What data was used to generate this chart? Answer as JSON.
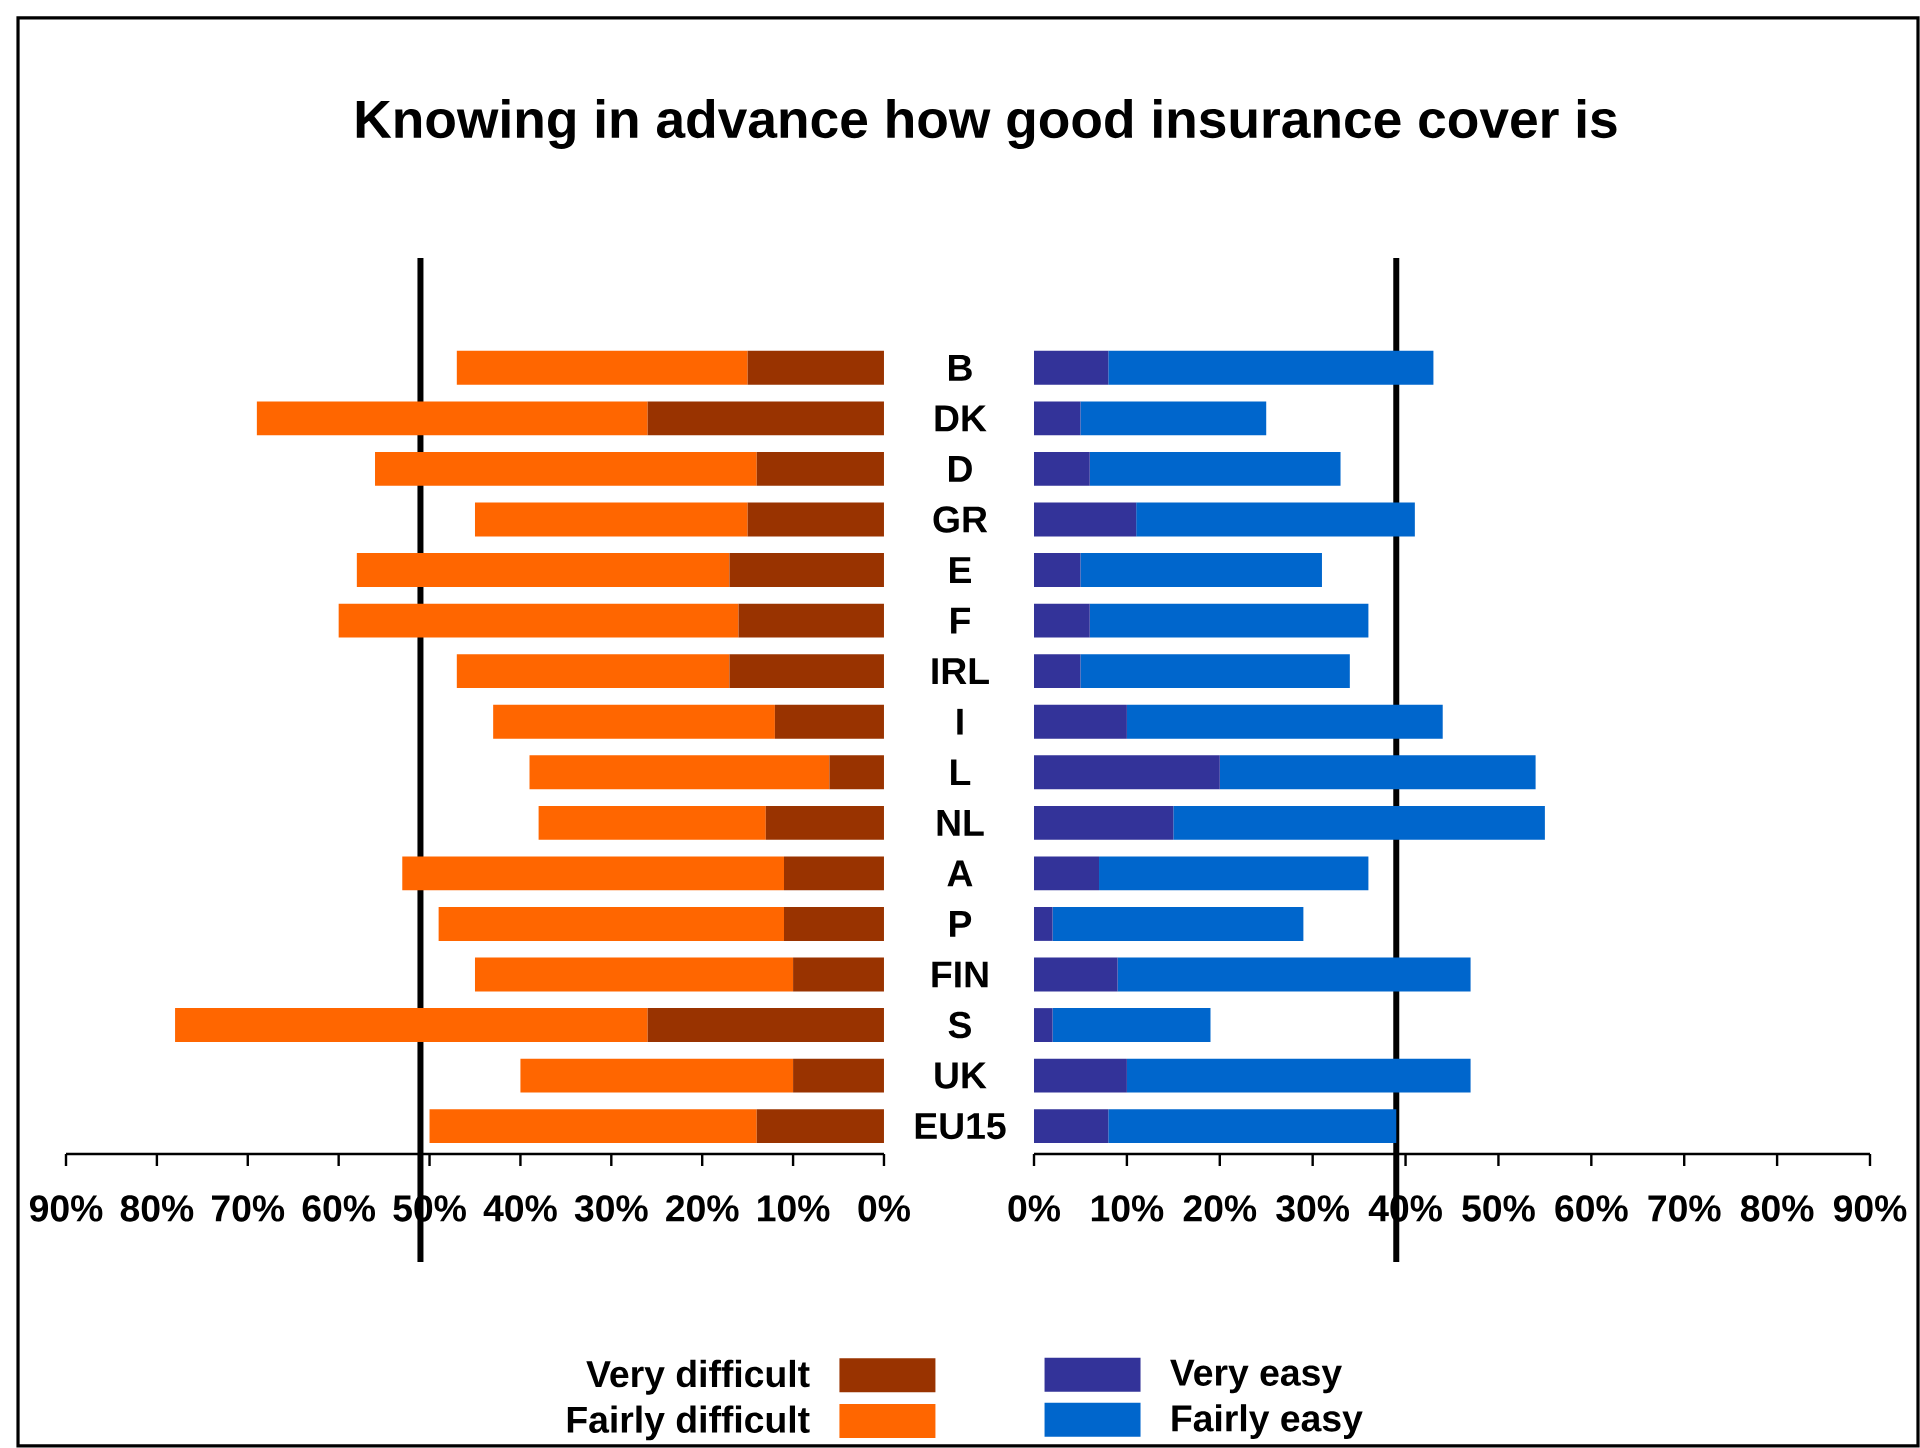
{
  "chart_data": [
    {
      "type": "bar",
      "orientation": "horizontal",
      "stacked": true,
      "title": "Knowing in advance how good insurance cover is",
      "categories": [
        "B",
        "DK",
        "D",
        "GR",
        "E",
        "F",
        "IRL",
        "I",
        "L",
        "NL",
        "A",
        "P",
        "FIN",
        "S",
        "UK",
        "EU15"
      ],
      "series": [
        {
          "name": "Very difficult",
          "color": "#993300",
          "values": [
            15,
            26,
            14,
            15,
            17,
            16,
            17,
            12,
            6,
            13,
            11,
            11,
            10,
            26,
            10,
            14
          ]
        },
        {
          "name": "Fairly difficult",
          "color": "#ff6600",
          "values": [
            32,
            43,
            42,
            30,
            41,
            44,
            30,
            31,
            33,
            25,
            42,
            38,
            35,
            52,
            30,
            36
          ]
        }
      ],
      "xlim": [
        90,
        0
      ],
      "xticks": [
        {
          "value": 0,
          "label": "0%"
        },
        {
          "value": 10,
          "label": "10%"
        },
        {
          "value": 20,
          "label": "20%"
        },
        {
          "value": 30,
          "label": "30%"
        },
        {
          "value": 40,
          "label": "40%"
        },
        {
          "value": 50,
          "label": "50%"
        },
        {
          "value": 60,
          "label": "60%"
        },
        {
          "value": 70,
          "label": "70%"
        },
        {
          "value": 80,
          "label": "80%"
        },
        {
          "value": 90,
          "label": "90%"
        }
      ],
      "ref_lines": [
        {
          "axis": "x",
          "value": 51
        }
      ],
      "legend": "bottom"
    },
    {
      "type": "bar",
      "orientation": "horizontal",
      "stacked": true,
      "categories": [
        null,
        null,
        null,
        null,
        null,
        null,
        null,
        null,
        null,
        null,
        null,
        null,
        null,
        null,
        null,
        null
      ],
      "series": [
        {
          "name": "Very easy",
          "color": "#333399",
          "values": [
            8,
            5,
            6,
            11,
            5,
            6,
            5,
            10,
            20,
            15,
            7,
            2,
            9,
            2,
            10,
            8
          ]
        },
        {
          "name": "Fairly easy",
          "color": "#0066cc",
          "values": [
            35,
            20,
            27,
            30,
            26,
            30,
            29,
            34,
            34,
            40,
            29,
            27,
            38,
            17,
            37,
            31
          ]
        }
      ],
      "xlim": [
        0,
        90
      ],
      "xticks": [
        {
          "value": 0,
          "label": "0%"
        },
        {
          "value": 10,
          "label": "10%"
        },
        {
          "value": 20,
          "label": "20%"
        },
        {
          "value": 30,
          "label": "30%"
        },
        {
          "value": 40,
          "label": "40%"
        },
        {
          "value": 50,
          "label": "50%"
        },
        {
          "value": 60,
          "label": "60%"
        },
        {
          "value": 70,
          "label": "70%"
        },
        {
          "value": 80,
          "label": "80%"
        },
        {
          "value": 90,
          "label": "90%"
        }
      ],
      "ref_lines": [
        {
          "axis": "x",
          "value": 39
        }
      ],
      "legend": "bottom"
    }
  ]
}
